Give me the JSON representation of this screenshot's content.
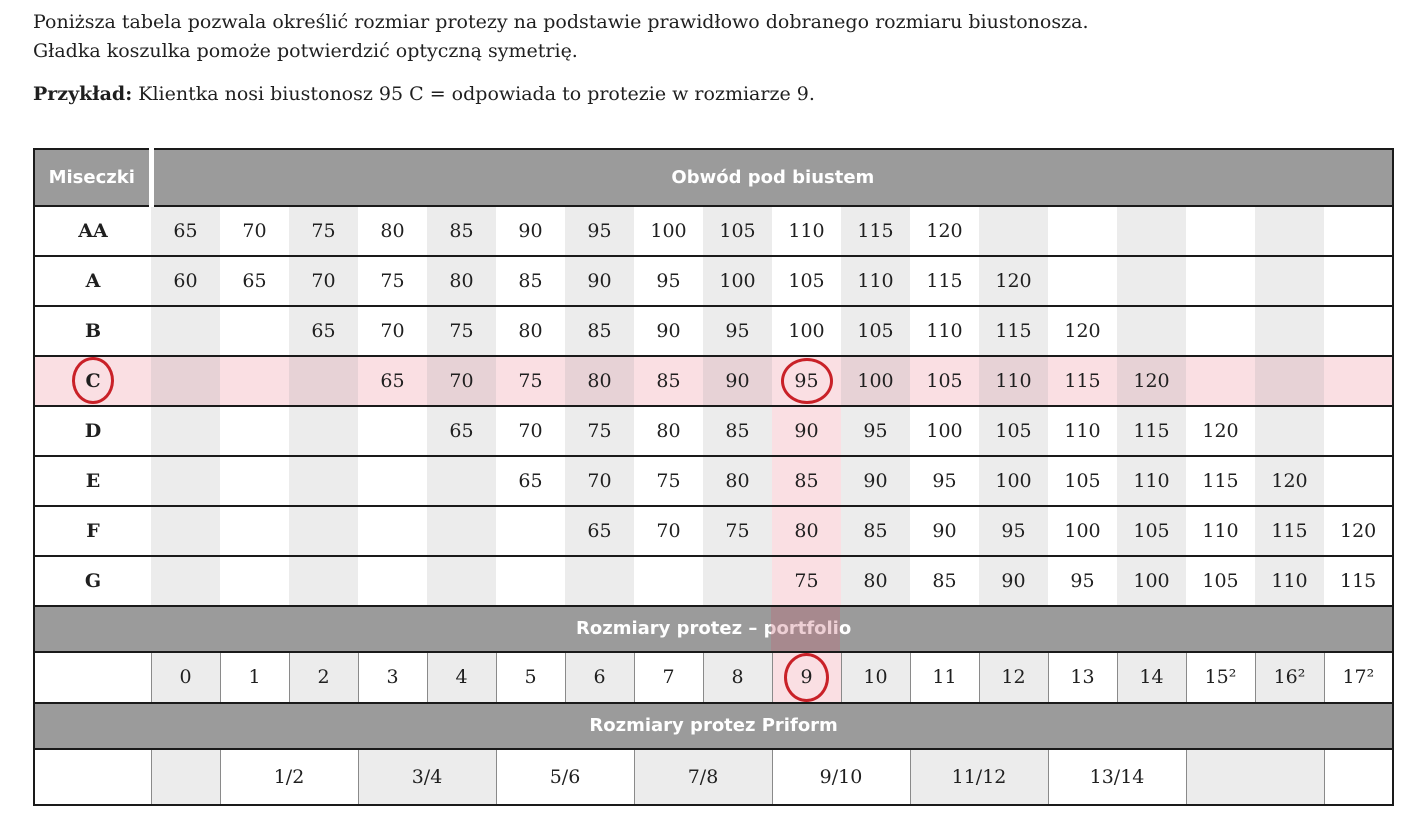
{
  "intro": {
    "line1": "Poniższa tabela pozwala określić rozmiar protezy na podstawie prawidłowo dobranego rozmiaru biustonosza.",
    "line2": "Gładka koszulka pomoże potwierdzić optyczną symetrię.",
    "example_label": "Przykład:",
    "example_text": " Klientka nosi biustonosz 95 C = odpowiada to protezie w rozmiarze 9."
  },
  "table": {
    "header": {
      "cups_label": "Miseczki",
      "band_label": "Obwód pod biustem"
    },
    "cup_rows": [
      {
        "cup": "AA",
        "cup_circled": false,
        "highlight_row": false,
        "pink_col": false,
        "values": [
          "65",
          "70",
          "75",
          "80",
          "85",
          "90",
          "95",
          "100",
          "105",
          "110",
          "115",
          "120",
          "",
          "",
          "",
          "",
          "",
          ""
        ]
      },
      {
        "cup": "A",
        "cup_circled": false,
        "highlight_row": false,
        "pink_col": false,
        "values": [
          "60",
          "65",
          "70",
          "75",
          "80",
          "85",
          "90",
          "95",
          "100",
          "105",
          "110",
          "115",
          "120",
          "",
          "",
          "",
          "",
          ""
        ]
      },
      {
        "cup": "B",
        "cup_circled": false,
        "highlight_row": false,
        "pink_col": false,
        "values": [
          "",
          "",
          "65",
          "70",
          "75",
          "80",
          "85",
          "90",
          "95",
          "100",
          "105",
          "110",
          "115",
          "120",
          "",
          "",
          "",
          ""
        ]
      },
      {
        "cup": "C",
        "cup_circled": true,
        "highlight_row": true,
        "pink_col": true,
        "circled_col": 9,
        "values": [
          "",
          "",
          "",
          "65",
          "70",
          "75",
          "80",
          "85",
          "90",
          "95",
          "100",
          "105",
          "110",
          "115",
          "120",
          "",
          "",
          ""
        ]
      },
      {
        "cup": "D",
        "cup_circled": false,
        "highlight_row": false,
        "pink_col": true,
        "values": [
          "",
          "",
          "",
          "",
          "65",
          "70",
          "75",
          "80",
          "85",
          "90",
          "95",
          "100",
          "105",
          "110",
          "115",
          "120",
          "",
          ""
        ]
      },
      {
        "cup": "E",
        "cup_circled": false,
        "highlight_row": false,
        "pink_col": true,
        "values": [
          "",
          "",
          "",
          "",
          "",
          "65",
          "70",
          "75",
          "80",
          "85",
          "90",
          "95",
          "100",
          "105",
          "110",
          "115",
          "120",
          ""
        ]
      },
      {
        "cup": "F",
        "cup_circled": false,
        "highlight_row": false,
        "pink_col": true,
        "values": [
          "",
          "",
          "",
          "",
          "",
          "",
          "65",
          "70",
          "75",
          "80",
          "85",
          "90",
          "95",
          "100",
          "105",
          "110",
          "115",
          "120"
        ]
      },
      {
        "cup": "G",
        "cup_circled": false,
        "highlight_row": false,
        "pink_col": true,
        "values": [
          "",
          "",
          "",
          "",
          "",
          "",
          "",
          "",
          "",
          "75",
          "80",
          "85",
          "90",
          "95",
          "100",
          "105",
          "110",
          "115"
        ]
      }
    ],
    "portfolio_header": "Rozmiary protez – portfolio",
    "portfolio_sizes": [
      "0",
      "1",
      "2",
      "3",
      "4",
      "5",
      "6",
      "7",
      "8",
      "9",
      "10",
      "11",
      "12",
      "13",
      "14",
      "15²",
      "16²",
      "17²"
    ],
    "portfolio_circled_index": 9,
    "priform_header": "Rozmiary protez Priform",
    "priform_cells": [
      {
        "label": "",
        "span": 1
      },
      {
        "label": "1/2",
        "span": 2
      },
      {
        "label": "3/4",
        "span": 2
      },
      {
        "label": "5/6",
        "span": 2
      },
      {
        "label": "7/8",
        "span": 2
      },
      {
        "label": "9/10",
        "span": 2
      },
      {
        "label": "11/12",
        "span": 2
      },
      {
        "label": "13/14",
        "span": 2
      },
      {
        "label": "",
        "span": 2
      },
      {
        "label": "",
        "span": 1
      }
    ],
    "highlight": {
      "column_index": 9,
      "circled_cup": "C",
      "circled_band_value": "95",
      "circled_size": "9"
    }
  },
  "colors": {
    "header_gray": "#9b9b9b",
    "stripe_gray": "#ececec",
    "row_pink": "#fadfe3",
    "row_pink_dark": "#e7d2d6",
    "circle_red": "#c92128",
    "border_dark": "#1a1a1a"
  }
}
